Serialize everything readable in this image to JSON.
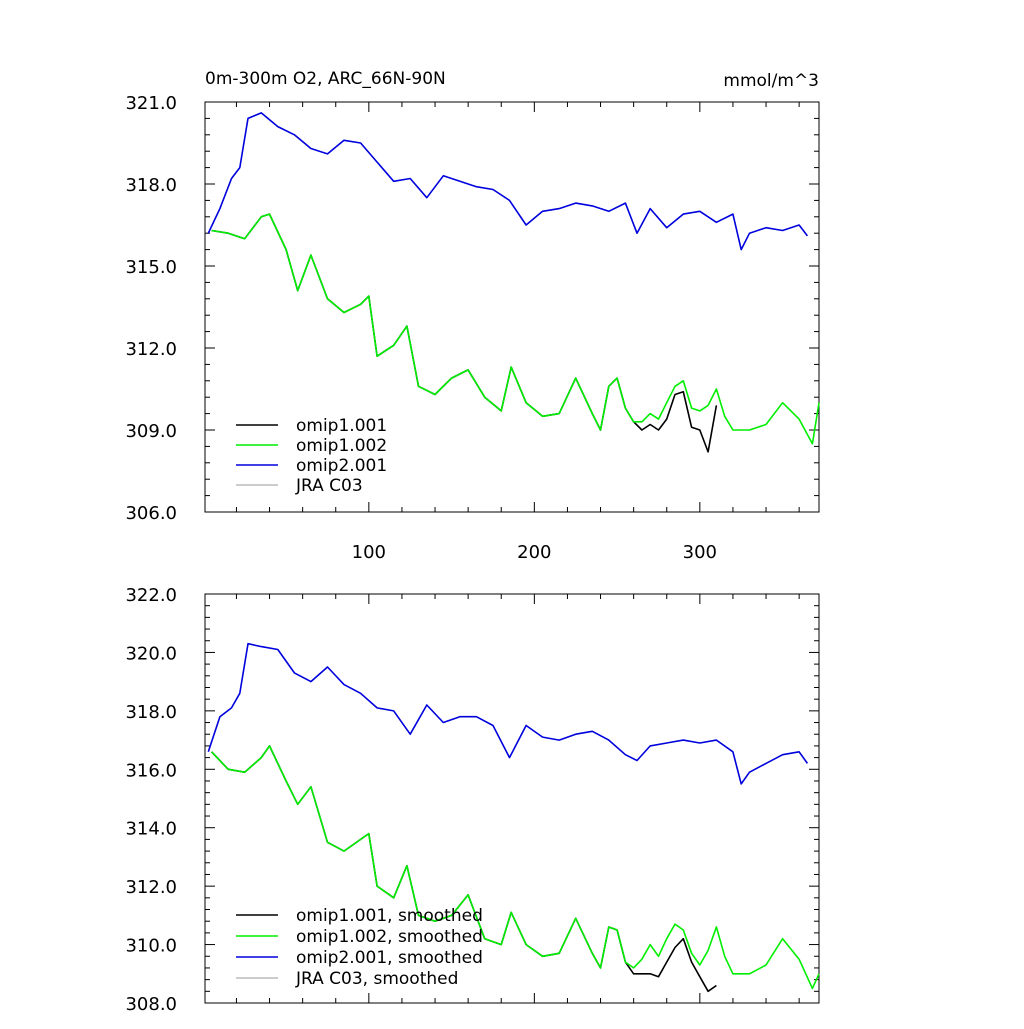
{
  "top_panel": {
    "title_left": "0m-300m O2, ARC_66N-90N",
    "title_right": "mmol/m^3"
  },
  "chart_data": [
    {
      "type": "line",
      "title": "0m-300m O2, ARC_66N-90N",
      "units": "mmol/m^3",
      "xlim": [
        1,
        372
      ],
      "ylim": [
        306.0,
        321.0
      ],
      "xticks": [
        100,
        200,
        300
      ],
      "xtick_labels": [
        "100",
        "200",
        "300"
      ],
      "yticks": [
        306.0,
        309.0,
        312.0,
        315.0,
        318.0,
        321.0
      ],
      "ytick_labels": [
        "306.0",
        "309.0",
        "312.0",
        "315.0",
        "318.0",
        "321.0"
      ],
      "legend_position": "bottom-left",
      "series": [
        {
          "name": "omip1.001",
          "color": "#000000",
          "x": [
            5,
            15,
            25,
            35,
            40,
            50,
            57,
            65,
            75,
            85,
            95,
            100,
            105,
            115,
            123,
            130,
            140,
            150,
            160,
            170,
            180,
            186,
            195,
            205,
            215,
            225,
            235,
            240,
            245,
            250,
            255,
            260,
            265,
            270,
            275,
            280,
            285,
            290,
            295,
            300,
            305,
            310
          ],
          "y": [
            316.3,
            316.2,
            316.0,
            316.8,
            316.9,
            315.6,
            314.1,
            315.4,
            313.8,
            313.3,
            313.6,
            313.9,
            311.7,
            312.1,
            312.8,
            310.6,
            310.3,
            310.9,
            311.2,
            310.2,
            309.7,
            311.3,
            310.0,
            309.5,
            309.6,
            310.9,
            309.6,
            309.0,
            310.6,
            310.9,
            309.8,
            309.3,
            309.0,
            309.2,
            309.0,
            309.4,
            310.3,
            310.4,
            309.1,
            309.0,
            308.2,
            309.9
          ]
        },
        {
          "name": "omip1.002",
          "color": "#00ee00",
          "x": [
            5,
            15,
            25,
            35,
            40,
            50,
            57,
            65,
            75,
            85,
            95,
            100,
            105,
            115,
            123,
            130,
            140,
            150,
            160,
            170,
            180,
            186,
            195,
            205,
            215,
            225,
            235,
            240,
            245,
            250,
            255,
            260,
            265,
            270,
            275,
            280,
            285,
            290,
            295,
            300,
            305,
            310,
            315,
            320,
            330,
            340,
            350,
            360,
            368,
            372
          ],
          "y": [
            316.3,
            316.2,
            316.0,
            316.8,
            316.9,
            315.6,
            314.1,
            315.4,
            313.8,
            313.3,
            313.6,
            313.9,
            311.7,
            312.1,
            312.8,
            310.6,
            310.3,
            310.9,
            311.2,
            310.2,
            309.7,
            311.3,
            310.0,
            309.5,
            309.6,
            310.9,
            309.6,
            309.0,
            310.6,
            310.9,
            309.8,
            309.3,
            309.3,
            309.6,
            309.4,
            310.0,
            310.6,
            310.8,
            309.8,
            309.7,
            309.9,
            310.5,
            309.5,
            309.0,
            309.0,
            309.2,
            310.0,
            309.4,
            308.5,
            310.0
          ]
        },
        {
          "name": "omip2.001",
          "color": "#0000dd",
          "x": [
            3,
            10,
            17,
            22,
            27,
            35,
            45,
            55,
            65,
            75,
            85,
            95,
            105,
            115,
            125,
            135,
            145,
            155,
            165,
            175,
            185,
            195,
            205,
            215,
            225,
            235,
            245,
            255,
            262,
            270,
            280,
            290,
            300,
            310,
            320,
            325,
            330,
            340,
            350,
            360,
            365
          ],
          "y": [
            316.2,
            317.1,
            318.2,
            318.6,
            320.4,
            320.6,
            320.1,
            319.8,
            319.3,
            319.1,
            319.6,
            319.5,
            318.8,
            318.1,
            318.2,
            317.5,
            318.3,
            318.1,
            317.9,
            317.8,
            317.4,
            316.5,
            317.0,
            317.1,
            317.3,
            317.2,
            317.0,
            317.3,
            316.2,
            317.1,
            316.4,
            316.9,
            317.0,
            316.6,
            316.9,
            315.6,
            316.2,
            316.4,
            316.3,
            316.5,
            316.1
          ]
        },
        {
          "name": "JRA C03",
          "color": "#bbbbbb",
          "x": [],
          "y": []
        }
      ]
    },
    {
      "type": "line",
      "xlim": [
        1,
        372
      ],
      "ylim": [
        308.0,
        322.0
      ],
      "xticks": [
        100,
        200,
        300
      ],
      "xtick_labels": [],
      "yticks": [
        308.0,
        310.0,
        312.0,
        314.0,
        316.0,
        318.0,
        320.0,
        322.0
      ],
      "ytick_labels": [
        "308.0",
        "310.0",
        "312.0",
        "314.0",
        "316.0",
        "318.0",
        "320.0",
        "322.0"
      ],
      "legend_position": "bottom-left",
      "series": [
        {
          "name": "omip1.001, smoothed",
          "color": "#000000",
          "x": [
            5,
            15,
            25,
            35,
            40,
            50,
            57,
            65,
            75,
            85,
            95,
            100,
            105,
            115,
            123,
            130,
            140,
            150,
            160,
            170,
            180,
            186,
            195,
            205,
            215,
            225,
            235,
            240,
            245,
            250,
            255,
            260,
            265,
            270,
            275,
            280,
            285,
            290,
            295,
            300,
            305,
            310
          ],
          "y": [
            316.6,
            316.0,
            315.9,
            316.4,
            316.8,
            315.6,
            314.8,
            315.4,
            313.5,
            313.2,
            313.6,
            313.8,
            312.0,
            311.6,
            312.7,
            311.0,
            310.8,
            311.0,
            311.7,
            310.2,
            310.0,
            311.1,
            310.0,
            309.6,
            309.7,
            310.9,
            309.7,
            309.2,
            310.6,
            310.5,
            309.4,
            309.0,
            309.0,
            309.0,
            308.9,
            309.4,
            309.9,
            310.2,
            309.4,
            308.9,
            308.4,
            308.6
          ]
        },
        {
          "name": "omip1.002, smoothed",
          "color": "#00ee00",
          "x": [
            5,
            15,
            25,
            35,
            40,
            50,
            57,
            65,
            75,
            85,
            95,
            100,
            105,
            115,
            123,
            130,
            140,
            150,
            160,
            170,
            180,
            186,
            195,
            205,
            215,
            225,
            235,
            240,
            245,
            250,
            255,
            260,
            265,
            270,
            275,
            280,
            285,
            290,
            295,
            300,
            305,
            310,
            315,
            320,
            330,
            340,
            350,
            360,
            368,
            372
          ],
          "y": [
            316.6,
            316.0,
            315.9,
            316.4,
            316.8,
            315.6,
            314.8,
            315.4,
            313.5,
            313.2,
            313.6,
            313.8,
            312.0,
            311.6,
            312.7,
            311.0,
            310.8,
            311.0,
            311.7,
            310.2,
            310.0,
            311.1,
            310.0,
            309.6,
            309.7,
            310.9,
            309.7,
            309.2,
            310.6,
            310.5,
            309.4,
            309.2,
            309.5,
            310.0,
            309.6,
            310.2,
            310.7,
            310.5,
            309.7,
            309.3,
            309.8,
            310.6,
            309.6,
            309.0,
            309.0,
            309.3,
            310.2,
            309.5,
            308.5,
            309.0
          ]
        },
        {
          "name": "omip2.001, smoothed",
          "color": "#0000dd",
          "x": [
            3,
            10,
            17,
            22,
            27,
            35,
            45,
            55,
            65,
            75,
            85,
            95,
            105,
            115,
            125,
            135,
            145,
            155,
            165,
            175,
            185,
            195,
            205,
            215,
            225,
            235,
            245,
            255,
            262,
            270,
            280,
            290,
            300,
            310,
            320,
            325,
            330,
            340,
            350,
            360,
            365
          ],
          "y": [
            316.6,
            317.8,
            318.1,
            318.6,
            320.3,
            320.2,
            320.1,
            319.3,
            319.0,
            319.5,
            318.9,
            318.6,
            318.1,
            318.0,
            317.2,
            318.2,
            317.6,
            317.8,
            317.8,
            317.5,
            316.4,
            317.5,
            317.1,
            317.0,
            317.2,
            317.3,
            317.0,
            316.5,
            316.3,
            316.8,
            316.9,
            317.0,
            316.9,
            317.0,
            316.6,
            315.5,
            315.9,
            316.2,
            316.5,
            316.6,
            316.2
          ]
        },
        {
          "name": "JRA C03, smoothed",
          "color": "#bbbbbb",
          "x": [],
          "y": []
        }
      ]
    }
  ]
}
